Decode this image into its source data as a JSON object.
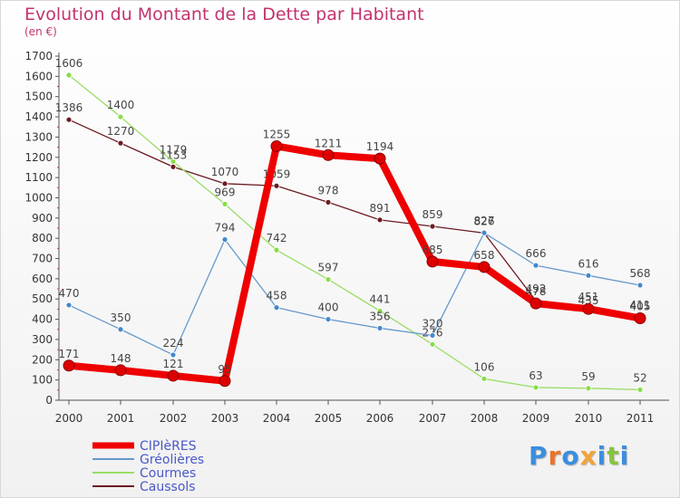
{
  "chart_data": {
    "type": "line",
    "title": "Evolution du Montant de la Dette par Habitant",
    "subtitle": "(en €)",
    "xlabel": "",
    "ylabel": "",
    "ylim": [
      0,
      1700
    ],
    "yticks": [
      0,
      100,
      200,
      300,
      400,
      500,
      600,
      700,
      800,
      900,
      1000,
      1100,
      1200,
      1300,
      1400,
      1500,
      1600,
      1700
    ],
    "categories": [
      "2000",
      "2001",
      "2002",
      "2003",
      "2004",
      "2005",
      "2006",
      "2007",
      "2008",
      "2009",
      "2010",
      "2011"
    ],
    "grid": false,
    "legend_position": "bottom-left",
    "series": [
      {
        "name": "Caussols",
        "color": "#6b1a22",
        "marker": "#6b1a22",
        "values": [
          1386,
          1270,
          1153,
          1070,
          1059,
          978,
          891,
          859,
          826,
          492,
          435,
          411
        ]
      },
      {
        "name": "Courmes",
        "color": "#99dd66",
        "marker": "#88dd44",
        "values": [
          1606,
          1400,
          1179,
          969,
          742,
          597,
          441,
          276,
          106,
          63,
          59,
          52
        ]
      },
      {
        "name": "Gréolières",
        "color": "#6699cc",
        "marker": "#4488cc",
        "values": [
          470,
          350,
          224,
          794,
          458,
          400,
          356,
          320,
          827,
          666,
          616,
          568
        ]
      },
      {
        "name": "CIPIèRES",
        "color": "#ee0000",
        "marker": "#dd0000",
        "values": [
          171,
          148,
          121,
          95,
          1255,
          1211,
          1194,
          685,
          658,
          478,
          451,
          405
        ]
      }
    ]
  },
  "legend": [
    "CIPIèRES",
    "Gréolières",
    "Courmes",
    "Caussols"
  ],
  "logo": {
    "letters": [
      "P",
      "r",
      "o",
      "x",
      "i",
      "t",
      "i"
    ],
    "colors": [
      "#3b8ede",
      "#e8752a",
      "#3b8ede",
      "#f2a33a",
      "#3b8ede",
      "#86c43f",
      "#3b8ede"
    ]
  }
}
